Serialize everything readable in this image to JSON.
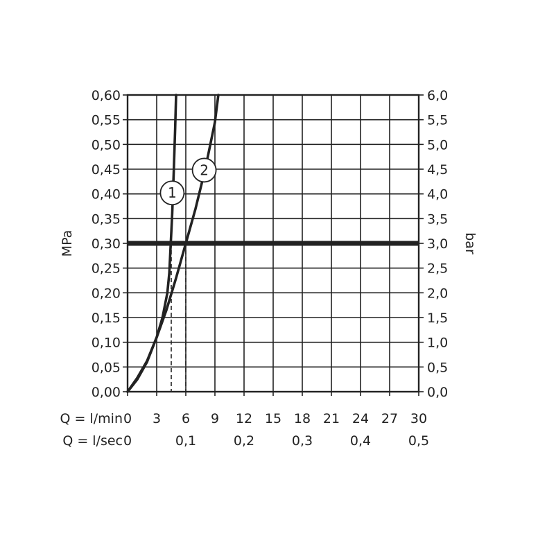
{
  "chart_data": {
    "type": "line",
    "title": "",
    "left_axis": {
      "label": "MPa",
      "range": [
        0,
        0.6
      ],
      "ticks": [
        "0,00",
        "0,05",
        "0,10",
        "0,15",
        "0,20",
        "0,25",
        "0,30",
        "0,35",
        "0,40",
        "0,45",
        "0,50",
        "0,55",
        "0,60"
      ]
    },
    "right_axis": {
      "label": "bar",
      "range": [
        0,
        6
      ],
      "ticks": [
        "0,0",
        "0,5",
        "1,0",
        "1,5",
        "2,0",
        "2,5",
        "3,0",
        "3,5",
        "4,0",
        "4,5",
        "5,0",
        "5,5",
        "6,0"
      ]
    },
    "x_axis_primary": {
      "label": "Q = l/min",
      "range": [
        0,
        30
      ],
      "ticks": [
        {
          "value": 0,
          "label": "0"
        },
        {
          "value": 3,
          "label": "3"
        },
        {
          "value": 6,
          "label": "6"
        },
        {
          "value": 9,
          "label": "9"
        },
        {
          "value": 12,
          "label": "12"
        },
        {
          "value": 15,
          "label": "15"
        },
        {
          "value": 18,
          "label": "18"
        },
        {
          "value": 21,
          "label": "21"
        },
        {
          "value": 24,
          "label": "24"
        },
        {
          "value": 27,
          "label": "27"
        },
        {
          "value": 30,
          "label": "30"
        }
      ]
    },
    "x_axis_secondary": {
      "label": "Q = l/sec",
      "range": [
        0,
        0.5
      ],
      "ticks": [
        {
          "value": 0,
          "label": "0"
        },
        {
          "value": 0.1,
          "label": "0,1"
        },
        {
          "value": 0.2,
          "label": "0,2"
        },
        {
          "value": 0.3,
          "label": "0,3"
        },
        {
          "value": 0.4,
          "label": "0,4"
        },
        {
          "value": 0.5,
          "label": "0,5"
        }
      ]
    },
    "grid": true,
    "reference_line": {
      "y": 0.3
    },
    "series": [
      {
        "name": "1",
        "x": [
          0,
          1,
          2,
          3,
          3.6,
          4.1,
          4.3,
          4.45,
          4.6,
          4.75,
          4.9,
          5.0
        ],
        "y": [
          0,
          0.025,
          0.06,
          0.11,
          0.15,
          0.2,
          0.24,
          0.3,
          0.36,
          0.44,
          0.53,
          0.6
        ],
        "marker_at": [
          4.6,
          0.402
        ],
        "drop_at_x": 4.5
      },
      {
        "name": "2",
        "x": [
          0,
          1,
          2,
          3,
          4,
          5,
          6,
          7,
          8,
          9,
          9.35
        ],
        "y": [
          0,
          0.028,
          0.062,
          0.11,
          0.165,
          0.23,
          0.3,
          0.37,
          0.45,
          0.545,
          0.6
        ],
        "marker_at": [
          7.9,
          0.448
        ],
        "drop_at_x": 6.0
      }
    ]
  }
}
